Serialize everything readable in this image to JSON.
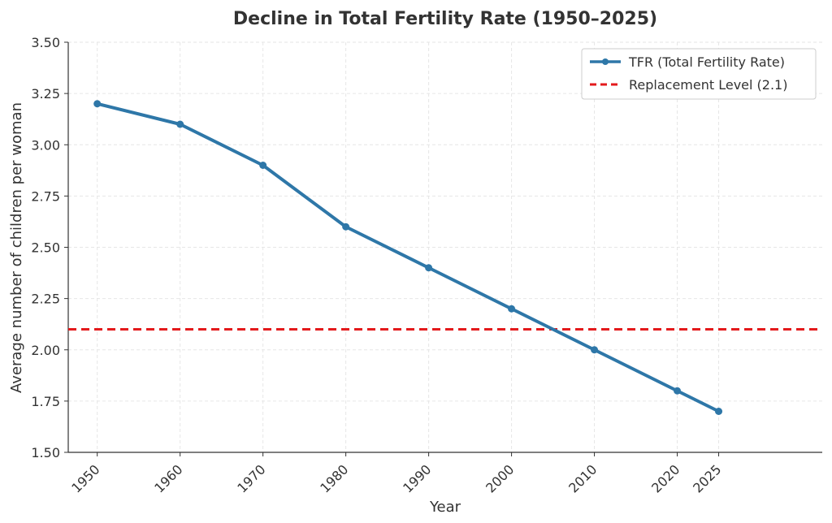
{
  "chart_data": {
    "type": "line",
    "title": "Decline in Total Fertility Rate (1950–2025)",
    "xlabel": "Year",
    "ylabel": "Average number of children per woman",
    "x": [
      1950,
      1960,
      1970,
      1980,
      1990,
      2000,
      2010,
      2020,
      2025
    ],
    "xticks": [
      "1950",
      "1960",
      "1970",
      "1980",
      "1990",
      "2000",
      "2010",
      "2020",
      "2025"
    ],
    "yticks": [
      "1.50",
      "1.75",
      "2.00",
      "2.25",
      "2.50",
      "2.75",
      "3.00",
      "3.25",
      "3.50"
    ],
    "ytick_values": [
      1.5,
      1.75,
      2.0,
      2.25,
      2.5,
      2.75,
      3.0,
      3.25,
      3.5
    ],
    "xlim": [
      1946.5,
      2037.5
    ],
    "ylim": [
      1.5,
      3.5
    ],
    "grid": true,
    "legend_position": "top-right",
    "series": [
      {
        "name": "TFR (Total Fertility Rate)",
        "values": [
          3.2,
          3.1,
          2.9,
          2.6,
          2.4,
          2.2,
          2.0,
          1.8,
          1.7
        ],
        "color": "#2e77a8",
        "style": "solid-with-markers"
      }
    ],
    "reference_lines": [
      {
        "name": "Replacement Level (2.1)",
        "y": 2.1,
        "color": "#e31a1c",
        "style": "dashed"
      }
    ]
  }
}
